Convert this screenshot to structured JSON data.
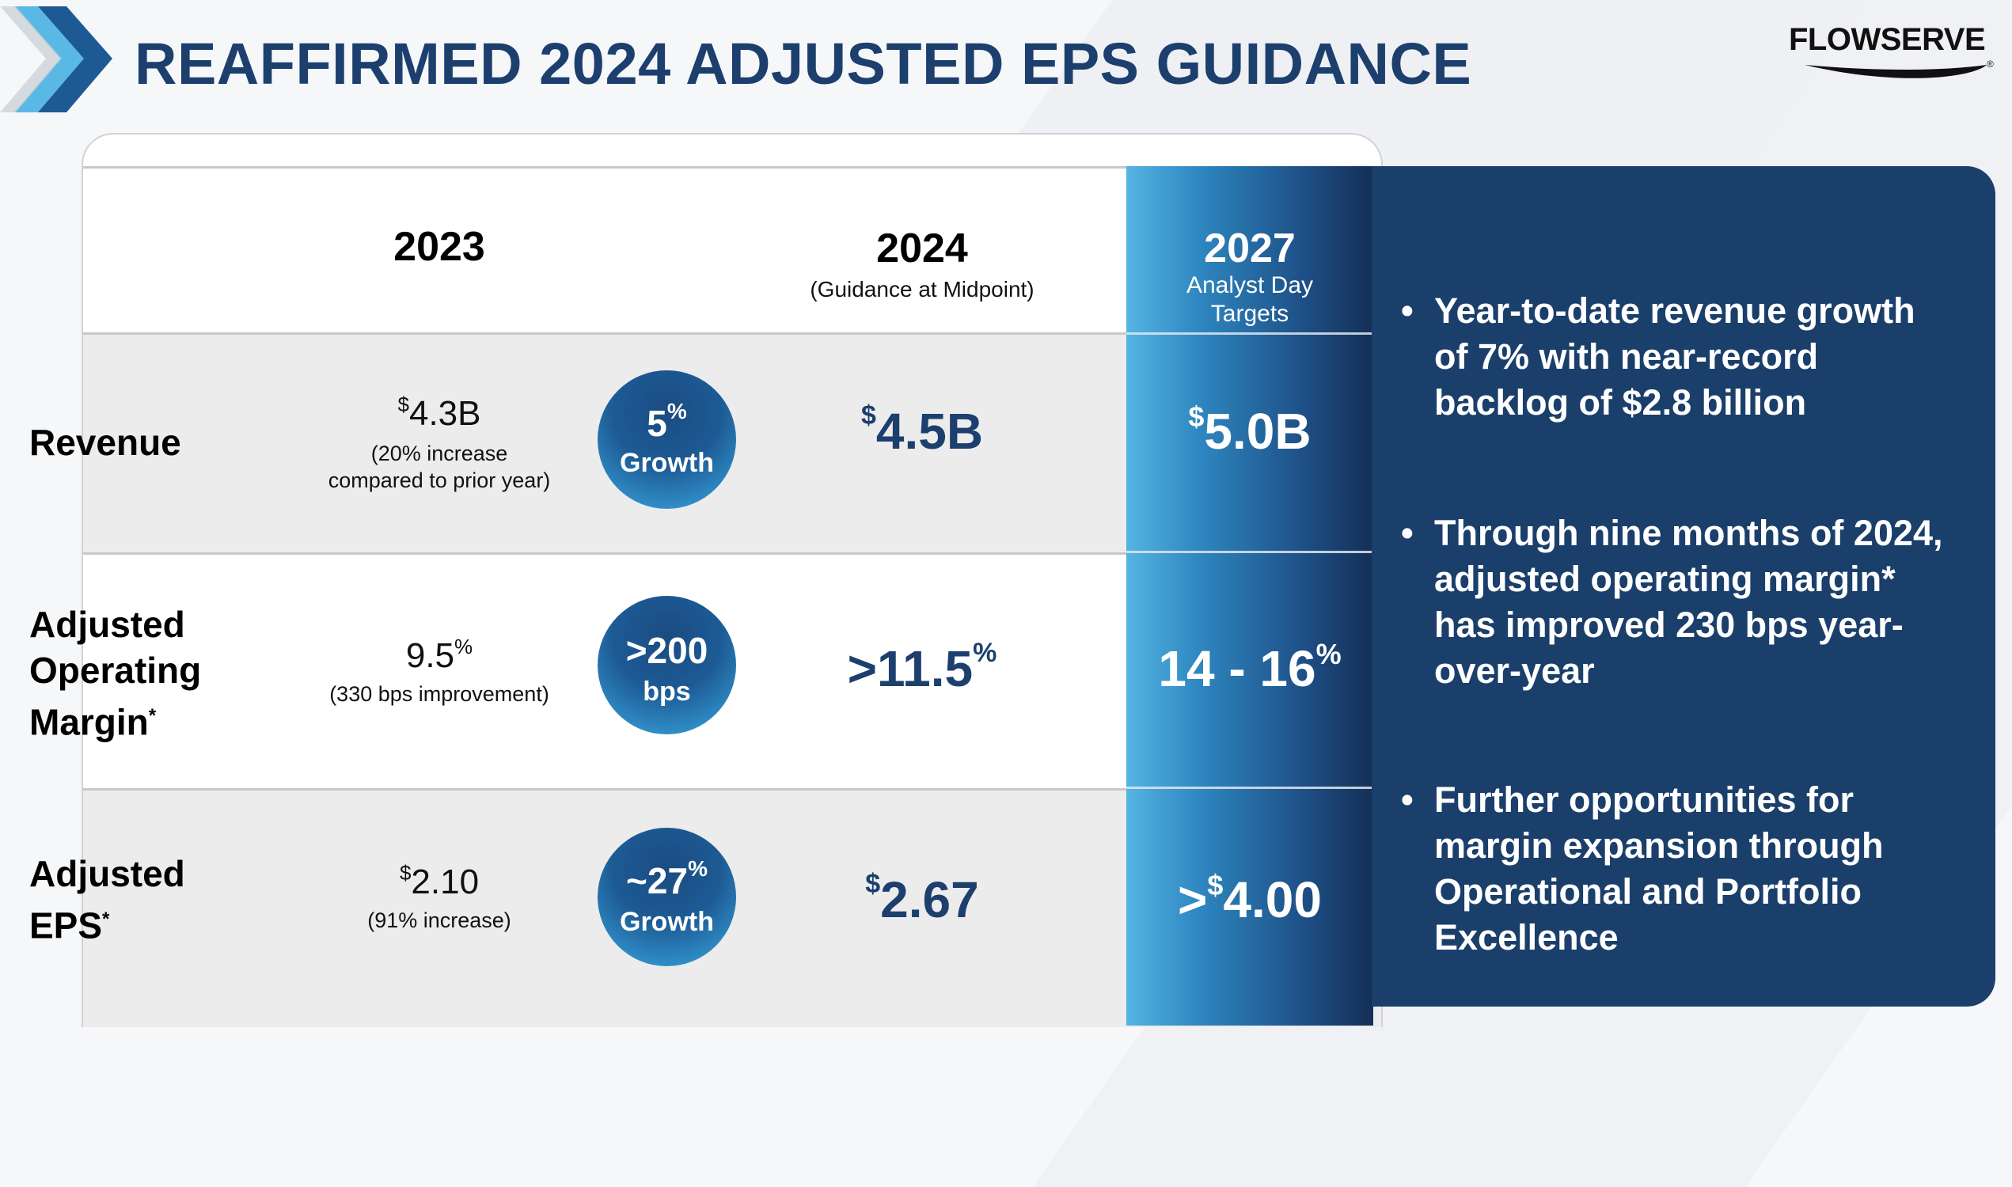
{
  "header": {
    "title": "REAFFIRMED 2024 ADJUSTED EPS GUIDANCE",
    "logo_text": "FLOWSERVE",
    "logo_mark": "®"
  },
  "columns": {
    "y2023": "2023",
    "y2024": "2024",
    "y2024_sub": "(Guidance at Midpoint)",
    "y2027": "2027",
    "y2027_sub1": "Analyst Day",
    "y2027_sub2": "Targets"
  },
  "rows": [
    {
      "label_lines": [
        "Revenue"
      ],
      "label_sup": "",
      "v2023_prefix": "$",
      "v2023": "4.3B",
      "v2023_suffix": "",
      "note1": "(20% increase",
      "note2": "compared to prior year)",
      "bubble_big": "5",
      "bubble_big_sup": "%",
      "bubble_small": "Growth",
      "v2024_prefix": "$",
      "v2024": "4.5B",
      "v2024_suffix": "",
      "v2027_prefix": "$",
      "v2027_lead": "",
      "v2027": "5.0B",
      "v2027_suffix": ""
    },
    {
      "label_lines": [
        "Adjusted",
        "Operating",
        "Margin"
      ],
      "label_sup": "*",
      "v2023_prefix": "",
      "v2023": "9.5",
      "v2023_suffix": "%",
      "note1": "(330 bps improvement)",
      "note2": "",
      "bubble_big": ">200",
      "bubble_big_sup": "",
      "bubble_small": "bps",
      "v2024_prefix": "",
      "v2024": ">11.5",
      "v2024_suffix": "%",
      "v2027_prefix": "",
      "v2027_lead": "",
      "v2027": "14 - 16",
      "v2027_suffix": "%"
    },
    {
      "label_lines": [
        "Adjusted",
        "EPS"
      ],
      "label_sup": "*",
      "v2023_prefix": "$",
      "v2023": "2.10",
      "v2023_suffix": "",
      "note1": "(91% increase)",
      "note2": "",
      "bubble_big": "~27",
      "bubble_big_sup": "%",
      "bubble_small": "Growth",
      "v2024_prefix": "$",
      "v2024": "2.67",
      "v2024_suffix": "",
      "v2027_prefix": "$",
      "v2027_lead": ">",
      "v2027": "4.00",
      "v2027_suffix": ""
    }
  ],
  "bullets": [
    {
      "dot": "•",
      "lines": [
        "Year-to-date revenue growth",
        "of 7% with near-record",
        "backlog of $2.8 billion"
      ]
    },
    {
      "dot": "•",
      "lines": [
        "Through nine months of 2024,",
        "adjusted operating margin*",
        "has improved 230 bps year-",
        "over-year"
      ]
    },
    {
      "dot": "•",
      "lines": [
        "Further opportunities for",
        "margin expansion through",
        "Operational and Portfolio",
        "Excellence"
      ]
    }
  ],
  "colors": {
    "title": "#1c3f6e",
    "panel": "#1b3f6b",
    "value_blue": "#1c3f6e",
    "chevron_dark": "#1d5a94",
    "chevron_light": "#5ab8e4"
  }
}
